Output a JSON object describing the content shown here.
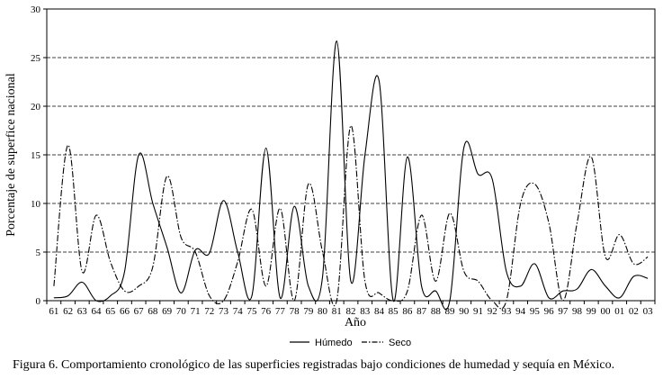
{
  "chart_data": {
    "type": "line",
    "title": "",
    "xlabel": "Año",
    "ylabel": "Porcentaje de superfice nacional",
    "ylim": [
      0,
      30
    ],
    "yticks": [
      0,
      5,
      10,
      15,
      20,
      25,
      30
    ],
    "grid": "horizontal dashed",
    "legend_position": "bottom-center",
    "categories": [
      "61",
      "62",
      "63",
      "64",
      "65",
      "66",
      "67",
      "68",
      "69",
      "70",
      "71",
      "72",
      "73",
      "74",
      "75",
      "76",
      "77",
      "78",
      "79",
      "80",
      "81",
      "82",
      "83",
      "84",
      "85",
      "86",
      "87",
      "88",
      "89",
      "90",
      "91",
      "92",
      "93",
      "94",
      "95",
      "96",
      "97",
      "98",
      "99",
      "00",
      "01",
      "02",
      "03"
    ],
    "series": [
      {
        "name": "Húmedo",
        "style": "solid",
        "values": [
          0.3,
          0.5,
          1.9,
          0,
          0.5,
          3.0,
          15.0,
          10.0,
          5.5,
          0.8,
          5.2,
          4.9,
          10.3,
          5.0,
          0.5,
          15.7,
          0.3,
          9.7,
          1.5,
          2.5,
          26.7,
          2.0,
          15.0,
          22.6,
          0,
          14.8,
          1.5,
          1.0,
          0,
          15.8,
          13.0,
          12.5,
          3.0,
          1.5,
          3.8,
          0.3,
          1.0,
          1.2,
          3.2,
          1.5,
          0.3,
          2.5,
          2.3
        ]
      },
      {
        "name": "Seco",
        "style": "dash-dot",
        "values": [
          1.5,
          16.0,
          3.0,
          8.8,
          4.0,
          1.0,
          1.5,
          3.5,
          12.8,
          6.5,
          5.0,
          0.5,
          0,
          4.0,
          9.4,
          1.5,
          9.5,
          0,
          12.0,
          5.0,
          0,
          18.0,
          2.0,
          0.8,
          0,
          1.0,
          8.8,
          2.0,
          9.0,
          3.0,
          2.0,
          0,
          0,
          10.0,
          12.0,
          8.0,
          0,
          8.0,
          14.8,
          4.5,
          6.8,
          3.8,
          4.5
        ]
      }
    ]
  },
  "caption": "Figura 6. Comportamiento cronológico de las superficies registradas bajo condiciones de humedad y sequía en México."
}
